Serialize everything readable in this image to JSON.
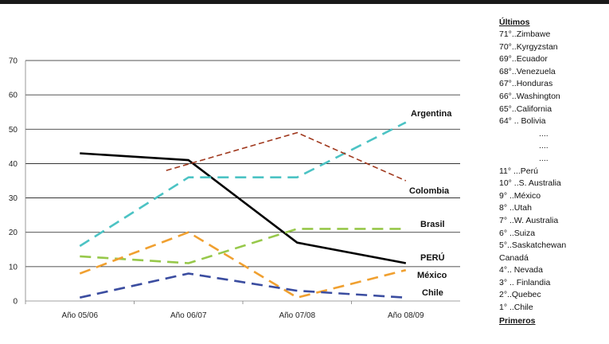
{
  "chart_data": {
    "type": "line",
    "title": "",
    "xlabel": "",
    "ylabel": "",
    "categories": [
      "Año 05/06",
      "Año 06/07",
      "Año 07/08",
      "Año 08/09"
    ],
    "ylim": [
      0,
      70
    ],
    "yticks": [
      "0",
      "10",
      "20",
      "30",
      "40",
      "50",
      "60",
      "70"
    ],
    "grid": true,
    "series": [
      {
        "name": "PERÚ",
        "values": [
          43,
          41,
          17,
          11
        ],
        "color": "#000000",
        "dashed": false
      },
      {
        "name": "Argentina",
        "values": [
          16,
          36,
          36,
          52
        ],
        "color": "#4cc3c4",
        "dashed": true
      },
      {
        "name": "Colombia",
        "values": [
          null,
          38,
          49,
          35
        ],
        "color": "#a0391e",
        "dashed": true
      },
      {
        "name": "Brasil",
        "values": [
          13,
          11,
          21,
          21
        ],
        "color": "#97c84a",
        "dashed": true
      },
      {
        "name": "México",
        "values": [
          8,
          20,
          1,
          9
        ],
        "color": "#f0a030",
        "dashed": true
      },
      {
        "name": "Chile",
        "values": [
          1,
          8,
          3,
          1
        ],
        "color": "#3b4da0",
        "dashed": true
      }
    ]
  },
  "ranking": {
    "last_header": "Últimos",
    "last": [
      "71°..Zimbawe",
      "70°..Kyrgyzstan",
      "69°..Ecuador",
      "68°..Venezuela",
      "67°..Honduras",
      "66°..Washington",
      "65°..California",
      "64° .. Bolivia"
    ],
    "dots": [
      "....",
      "....",
      "...."
    ],
    "first": [
      "11° ...Perú",
      "10° ..S. Australia",
      "9° ..México",
      "8° ..Utah",
      "7° ..W. Australia",
      "6° ..Suiza",
      "5°..Saskatchewan",
      "Canadá",
      "4°.. Nevada",
      "3° .. Finlandia",
      "2°..Quebec",
      "1° ..Chile"
    ],
    "first_header": "Primeros"
  }
}
